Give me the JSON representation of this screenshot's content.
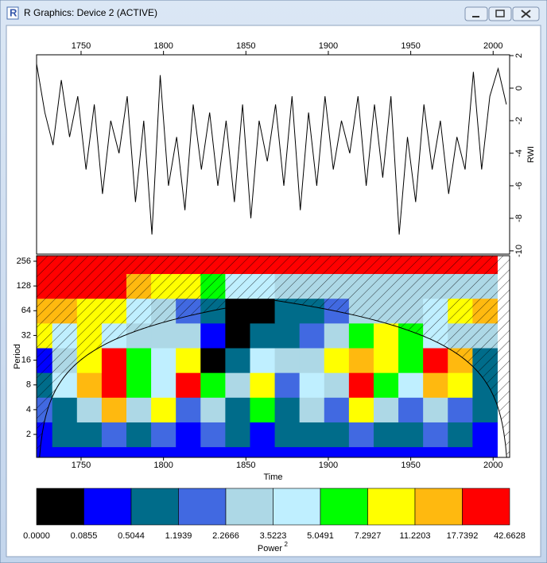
{
  "window": {
    "title": "R Graphics: Device 2 (ACTIVE)"
  },
  "chart_data": [
    {
      "type": "line",
      "ylabel": "RWI",
      "color": "#000000",
      "x": [
        1723,
        1728,
        1733,
        1738,
        1743,
        1748,
        1753,
        1758,
        1763,
        1768,
        1773,
        1778,
        1783,
        1788,
        1793,
        1798,
        1803,
        1808,
        1813,
        1818,
        1823,
        1828,
        1833,
        1838,
        1843,
        1848,
        1853,
        1858,
        1863,
        1868,
        1873,
        1878,
        1883,
        1888,
        1893,
        1898,
        1903,
        1908,
        1913,
        1918,
        1923,
        1928,
        1933,
        1938,
        1943,
        1948,
        1953,
        1958,
        1963,
        1968,
        1973,
        1978,
        1983,
        1988,
        1993,
        1998,
        2003,
        2008
      ],
      "values": [
        1.5,
        -1.5,
        -3.5,
        0.5,
        -3,
        -0.5,
        -5,
        -1,
        -6.5,
        -2,
        -4,
        -0.5,
        -7,
        -2,
        -9,
        0.8,
        -6,
        -3,
        -7.5,
        -1,
        -5,
        -1.5,
        -6,
        -2,
        -7,
        -1,
        -8,
        -2,
        -4.5,
        -1,
        -6,
        -0.5,
        -7.5,
        -1.5,
        -6,
        -0.5,
        -5,
        -2,
        -4,
        -0.5,
        -6,
        -1,
        -5.5,
        -0.5,
        -9,
        -3,
        -7,
        -1,
        -5,
        -2,
        -6.5,
        -3,
        -5,
        1,
        -5,
        -0.5,
        1.2,
        -1
      ],
      "xlim": [
        1723,
        2010
      ],
      "xticks": [
        1750,
        1800,
        1850,
        1900,
        1950,
        2000
      ],
      "ylim": [
        -10.2,
        2.05
      ],
      "yticks": [
        2,
        0,
        -2,
        -4,
        -6,
        -8,
        -10
      ]
    },
    {
      "type": "heatmap",
      "xlabel": "Time",
      "ylabel": "Period",
      "log_y": true,
      "x": [
        1725,
        1740,
        1755,
        1770,
        1785,
        1800,
        1815,
        1830,
        1845,
        1860,
        1875,
        1890,
        1905,
        1920,
        1935,
        1950,
        1965,
        1980,
        1995
      ],
      "y": [
        1,
        2,
        4,
        8,
        16,
        32,
        64,
        128,
        256
      ],
      "values": [
        [
          0.3,
          0.3,
          0.3,
          0.3,
          0.3,
          0.3,
          0.3,
          0.3,
          0.3,
          0.3,
          0.3,
          0.3,
          0.3,
          0.3,
          0.3,
          0.3,
          0.3,
          0.3,
          0.3
        ],
        [
          0.3,
          0.6,
          0.6,
          1.5,
          0.6,
          1.5,
          0.3,
          1.5,
          0.6,
          0.3,
          0.6,
          0.6,
          0.6,
          1.5,
          0.6,
          0.6,
          1.5,
          0.6,
          0.3
        ],
        [
          1.5,
          0.6,
          3,
          12,
          2.5,
          8,
          1.5,
          3,
          0.6,
          6,
          0.6,
          3,
          1.5,
          8,
          3,
          1.5,
          3,
          1.5,
          0.6
        ],
        [
          0.6,
          4,
          12,
          20,
          6,
          4,
          18,
          6,
          3,
          8,
          1.5,
          4,
          2.5,
          25,
          6,
          4,
          12,
          8,
          0.6
        ],
        [
          0.3,
          3,
          8,
          25,
          6,
          4,
          10,
          0.05,
          0.6,
          4,
          3,
          2.5,
          8,
          14,
          10,
          6,
          25,
          12,
          0.6
        ],
        [
          8,
          4,
          10,
          4,
          3,
          2.5,
          2.5,
          0.3,
          0.05,
          0.6,
          0.6,
          1.5,
          3,
          6,
          8,
          6,
          4,
          3,
          3
        ],
        [
          12,
          12,
          10,
          8,
          4,
          3,
          1.5,
          0.6,
          0.05,
          0.05,
          0.6,
          0.6,
          1.5,
          2.5,
          3,
          3,
          4,
          8,
          12
        ],
        [
          20,
          25,
          25,
          20,
          12,
          10,
          8,
          6,
          4,
          4,
          3,
          3,
          3,
          3,
          3,
          3,
          3,
          3,
          3
        ],
        [
          30,
          30,
          30,
          30,
          30,
          30,
          30,
          30,
          30,
          30,
          30,
          30,
          30,
          30,
          30,
          30,
          30,
          30,
          30
        ]
      ],
      "xlim": [
        1723,
        2010
      ],
      "xticks": [
        1750,
        1800,
        1850,
        1900,
        1950,
        2000
      ],
      "ylim": [
        1.05,
        299
      ],
      "yticks": [
        2,
        4,
        8,
        16,
        32,
        64,
        128,
        256
      ],
      "levels": [
        {
          "value": 0,
          "label": "0.0000"
        },
        0.0855,
        0.5044,
        1.1939,
        2.2666,
        3.5223,
        5.0491,
        7.2927,
        11.2203,
        17.7392,
        42.6628
      ],
      "colors": [
        "#000000",
        "#0000ff",
        "#006c8a",
        "#4169e1",
        "#add8e6",
        "#bfefff",
        "#00ff00",
        "#ffff00",
        "#ffb90f",
        "#ff0000"
      ],
      "legend_title": "Power",
      "legend_title_sup": "2"
    }
  ]
}
